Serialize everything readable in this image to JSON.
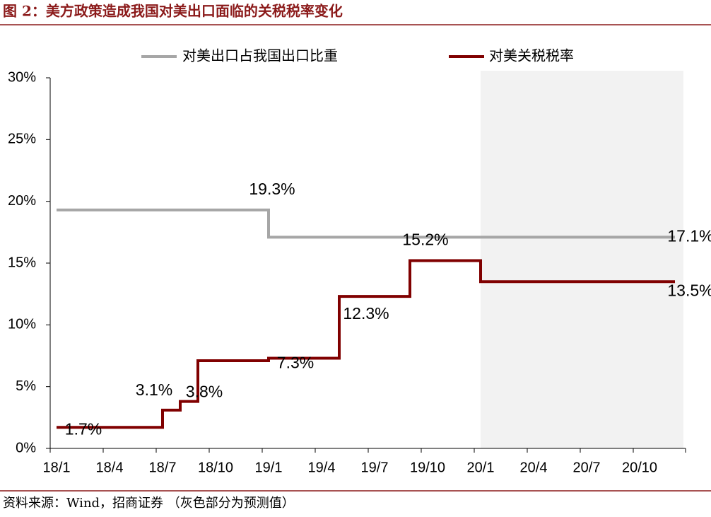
{
  "title": "图 2：美方政策造成我国对美出口面临的关税税率变化",
  "source": "资料来源：Wind，招商证券 （灰色部分为预测值）",
  "chart_data": {
    "type": "step-line",
    "xticks": [
      "18/1",
      "18/4",
      "18/7",
      "18/10",
      "19/1",
      "19/4",
      "19/7",
      "19/10",
      "20/1",
      "20/4",
      "20/7",
      "20/10"
    ],
    "ylim": [
      0,
      30
    ],
    "yticks": [
      {
        "value": 0,
        "label": "0%"
      },
      {
        "value": 5,
        "label": "5%"
      },
      {
        "value": 10,
        "label": "10%"
      },
      {
        "value": 15,
        "label": "15%"
      },
      {
        "value": 20,
        "label": "20%"
      },
      {
        "value": 25,
        "label": "25%"
      },
      {
        "value": 30,
        "label": "30%"
      }
    ],
    "shaded_range": [
      "20/1",
      "20/12"
    ],
    "legend": "top",
    "series": [
      {
        "name": "对美出口占我国出口比重",
        "color": "#a6a6a6",
        "x": [
          "18/1",
          "19/1",
          "20/12"
        ],
        "values": [
          19.3,
          17.1,
          17.1
        ],
        "value_labels": [
          "19.3%",
          null,
          "17.1%"
        ]
      },
      {
        "name": "对美关税税率",
        "color": "#800000",
        "x": [
          "18/1",
          "18/7",
          "18/8",
          "18/9",
          "19/1",
          "19/5",
          "19/9",
          "20/1",
          "20/12"
        ],
        "values": [
          1.7,
          3.1,
          3.8,
          7.1,
          7.3,
          12.3,
          15.2,
          13.5,
          13.5
        ],
        "value_labels": [
          "1.7%",
          "3.1%",
          "3.8%",
          null,
          "7.3%",
          "12.3%",
          "15.2%",
          null,
          "13.5%"
        ]
      }
    ]
  }
}
